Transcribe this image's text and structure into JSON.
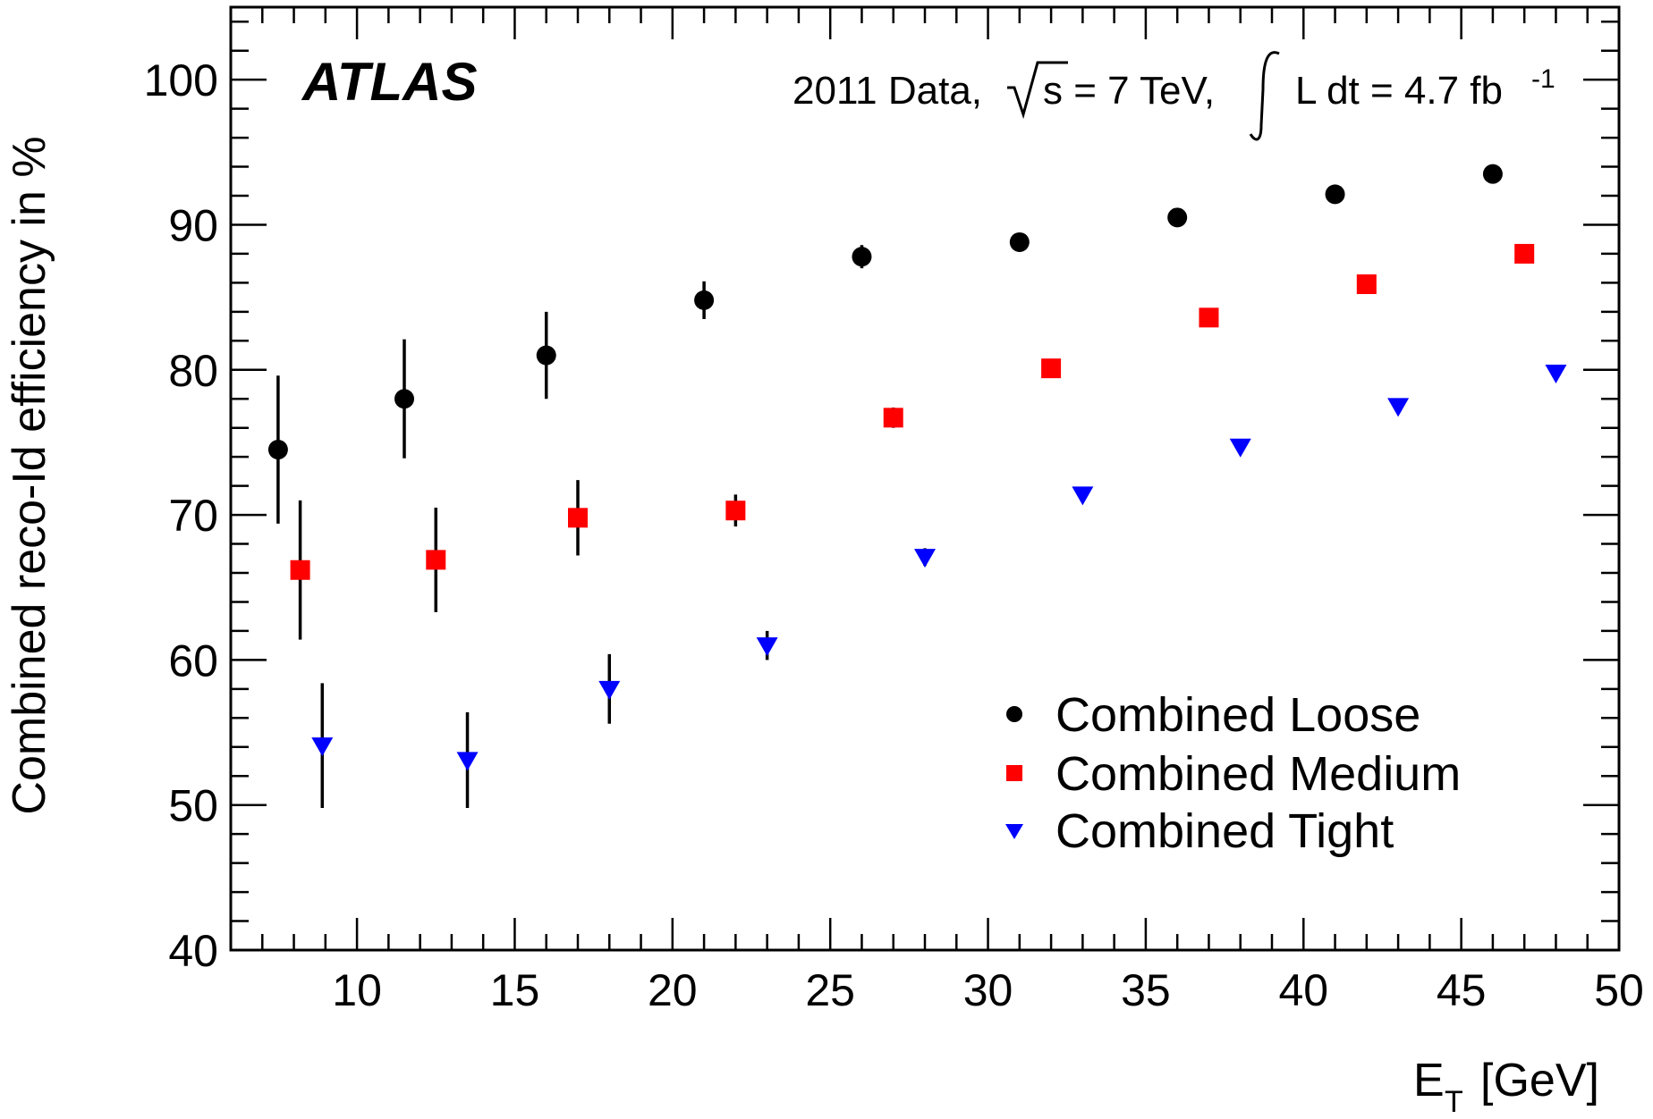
{
  "chart_data": {
    "type": "scatter",
    "experiment_label": "ATLAS",
    "info": {
      "prefix": "2011 Data,",
      "sqrt_s": "s = 7 TeV,",
      "lumi": "L dt = 4.7 fb",
      "lumi_exp": "-1"
    },
    "xlabel": "E",
    "xlabel_sub": "T",
    "xlabel_unit": "[GeV]",
    "ylabel": "Combined reco-Id efficiency in %",
    "xlim": [
      6,
      50
    ],
    "ylim": [
      40,
      105
    ],
    "xticks": [
      10,
      15,
      20,
      25,
      30,
      35,
      40,
      45,
      50
    ],
    "yticks": [
      40,
      50,
      60,
      70,
      80,
      90,
      100
    ],
    "legend_position": "bottom-right",
    "series": [
      {
        "name": "Combined Loose",
        "marker": "circle",
        "color": "#000000",
        "points": [
          {
            "x": 7.5,
            "y": 74.5,
            "err": 5.1
          },
          {
            "x": 11.5,
            "y": 78.0,
            "err": 4.1
          },
          {
            "x": 16.0,
            "y": 81.0,
            "err": 3.0
          },
          {
            "x": 21.0,
            "y": 84.8,
            "err": 1.3
          },
          {
            "x": 26.0,
            "y": 87.8,
            "err": 0.8
          },
          {
            "x": 31.0,
            "y": 88.8,
            "err": 0.5
          },
          {
            "x": 36.0,
            "y": 90.5,
            "err": 0.4
          },
          {
            "x": 41.0,
            "y": 92.1,
            "err": 0.4
          },
          {
            "x": 46.0,
            "y": 93.5,
            "err": 0.4
          }
        ]
      },
      {
        "name": "Combined Medium",
        "marker": "square",
        "color": "#ff0000",
        "points": [
          {
            "x": 8.2,
            "y": 66.2,
            "err": 4.8
          },
          {
            "x": 12.5,
            "y": 66.9,
            "err": 3.6
          },
          {
            "x": 17.0,
            "y": 69.8,
            "err": 2.6
          },
          {
            "x": 22.0,
            "y": 70.3,
            "err": 1.1
          },
          {
            "x": 27.0,
            "y": 76.7,
            "err": 0.7
          },
          {
            "x": 32.0,
            "y": 80.1,
            "err": 0.5
          },
          {
            "x": 37.0,
            "y": 83.6,
            "err": 0.4
          },
          {
            "x": 42.0,
            "y": 85.9,
            "err": 0.4
          },
          {
            "x": 47.0,
            "y": 88.0,
            "err": 0.4
          }
        ]
      },
      {
        "name": "Combined Tight",
        "marker": "triangle-down",
        "color": "#0000ff",
        "points": [
          {
            "x": 8.9,
            "y": 54.1,
            "err": 4.3
          },
          {
            "x": 13.5,
            "y": 53.1,
            "err": 3.3
          },
          {
            "x": 18.0,
            "y": 58.0,
            "err": 2.4
          },
          {
            "x": 23.0,
            "y": 61.0,
            "err": 1.0
          },
          {
            "x": 28.0,
            "y": 67.1,
            "err": 0.6
          },
          {
            "x": 33.0,
            "y": 71.4,
            "err": 0.5
          },
          {
            "x": 38.0,
            "y": 74.7,
            "err": 0.4
          },
          {
            "x": 43.0,
            "y": 77.5,
            "err": 0.4
          },
          {
            "x": 48.0,
            "y": 79.8,
            "err": 0.4
          }
        ]
      }
    ]
  }
}
